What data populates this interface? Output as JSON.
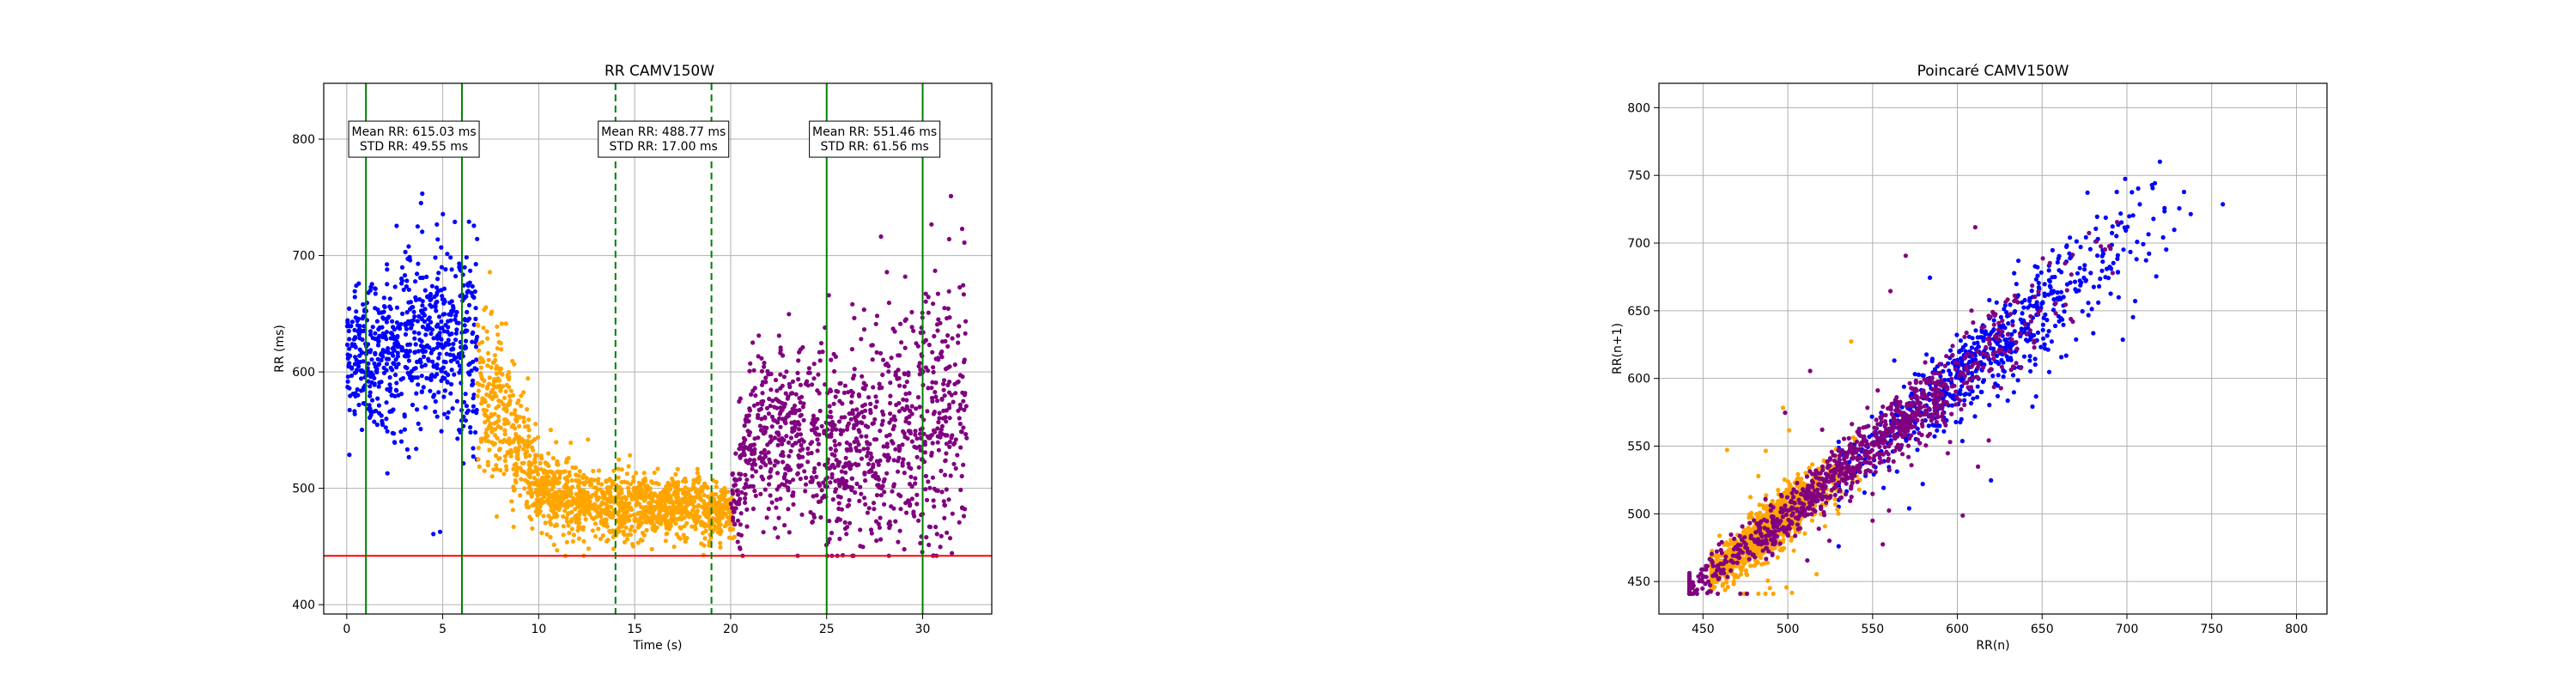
{
  "chart_data": [
    {
      "type": "scatter",
      "title": "RR CAMV150W",
      "xlabel": "Time (s)",
      "ylabel": "RR (ms)",
      "xlim": [
        -1.2,
        33.6
      ],
      "ylim": [
        392,
        848
      ],
      "xticks": [
        0,
        5,
        10,
        15,
        20,
        25,
        30
      ],
      "yticks": [
        400,
        500,
        600,
        700,
        800
      ],
      "grid": true,
      "series": [
        {
          "color": "#0000ff",
          "x_range": [
            0,
            6.8
          ],
          "segments": [
            [
              0,
              612,
              30
            ],
            [
              2,
              620,
              35
            ],
            [
              4,
              635,
              40
            ],
            [
              6.8,
              620,
              45
            ]
          ]
        },
        {
          "color": "#ffa500",
          "x_range": [
            6.8,
            20.2
          ],
          "segments": [
            [
              6.8,
              580,
              35
            ],
            [
              8.5,
              560,
              30
            ],
            [
              10,
              500,
              18
            ],
            [
              13,
              485,
              14
            ],
            [
              18,
              485,
              13
            ],
            [
              20.2,
              480,
              12
            ]
          ]
        },
        {
          "color": "#800080",
          "x_range": [
            20,
            32.3
          ],
          "segments": [
            [
              20,
              480,
              20
            ],
            [
              21,
              540,
              40
            ],
            [
              24,
              540,
              40
            ],
            [
              27,
              530,
              45
            ],
            [
              30,
              560,
              60
            ],
            [
              32.3,
              570,
              55
            ]
          ]
        }
      ],
      "reference_lines": [
        {
          "orientation": "horizontal",
          "value": 442,
          "color": "#ff0000",
          "style": "solid"
        },
        {
          "orientation": "vertical",
          "value": 1,
          "color": "#008000",
          "style": "solid"
        },
        {
          "orientation": "vertical",
          "value": 6,
          "color": "#008000",
          "style": "solid"
        },
        {
          "orientation": "vertical",
          "value": 14,
          "color": "#008000",
          "style": "dashed"
        },
        {
          "orientation": "vertical",
          "value": 19,
          "color": "#008000",
          "style": "dashed"
        },
        {
          "orientation": "vertical",
          "value": 25,
          "color": "#008000",
          "style": "solid"
        },
        {
          "orientation": "vertical",
          "value": 30,
          "color": "#008000",
          "style": "solid"
        }
      ],
      "annotations": [
        {
          "x": 3.5,
          "y": 800,
          "lines": [
            "Mean RR: 615.03 ms",
            "STD RR: 49.55 ms"
          ]
        },
        {
          "x": 16.5,
          "y": 800,
          "lines": [
            "Mean RR: 488.77 ms",
            "STD RR: 17.00 ms"
          ]
        },
        {
          "x": 27.5,
          "y": 800,
          "lines": [
            "Mean RR: 551.46 ms",
            "STD RR: 61.56 ms"
          ]
        }
      ]
    },
    {
      "type": "scatter",
      "title": "Poincaré CAMV150W",
      "xlabel": "RR(n)",
      "ylabel": "RR(n+1)",
      "xlim": [
        424,
        818
      ],
      "ylim": [
        426,
        818
      ],
      "xticks": [
        450,
        500,
        550,
        600,
        650,
        700,
        750,
        800
      ],
      "yticks": [
        450,
        500,
        550,
        600,
        650,
        700,
        750,
        800
      ],
      "grid": true,
      "series": [
        {
          "color": "#0000ff",
          "x_range": [
            530,
            790
          ],
          "center": 615,
          "spread": 50
        },
        {
          "color": "#ffa500",
          "x_range": [
            455,
            590
          ],
          "center": 490,
          "spread": 20
        },
        {
          "color": "#800080",
          "x_range": [
            442,
            800
          ],
          "center": 540,
          "spread": 55
        }
      ]
    }
  ]
}
